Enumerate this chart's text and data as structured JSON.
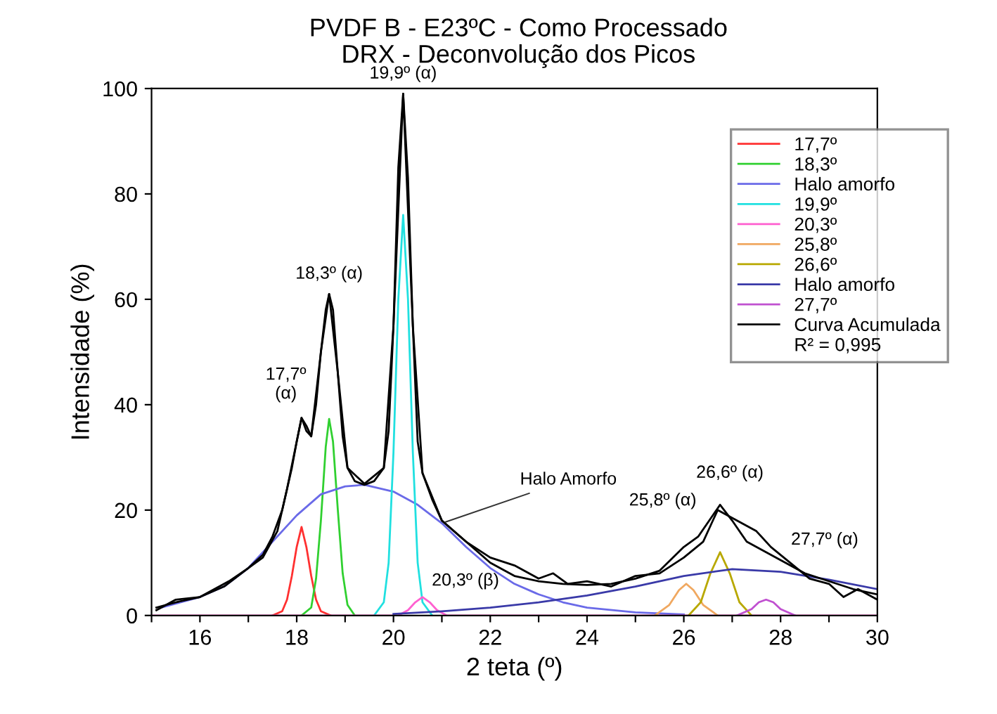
{
  "chart_data": {
    "type": "line",
    "title": "PVDF B - E23ºC - Como Processado",
    "subtitle": "DRX - Deconvolução dos Picos",
    "xlabel": "2 teta (º)",
    "ylabel": "Intensidade (%)",
    "xlim": [
      15,
      30
    ],
    "xticks": [
      {
        "value": 15,
        "label": null
      },
      16,
      {
        "value": 17,
        "label": null
      },
      18,
      {
        "value": 19,
        "label": null
      },
      20,
      {
        "value": 21,
        "label": null
      },
      22,
      {
        "value": 23,
        "label": null
      },
      24,
      {
        "value": 25,
        "label": null
      },
      26,
      {
        "value": 27,
        "label": null
      },
      28,
      {
        "value": 29,
        "label": null
      },
      30
    ],
    "ylim": [
      0,
      100
    ],
    "yticks": [
      0,
      20,
      40,
      60,
      80,
      100
    ],
    "grid": false,
    "legend": "top right",
    "marker": "none",
    "line_style": "solid",
    "series": [
      {
        "name": "17,7º",
        "color": "#ff3030",
        "x": [
          17.5,
          17.7,
          17.8,
          17.9,
          18.0,
          18.1,
          18.2,
          18.3,
          18.4,
          18.5,
          18.7
        ],
        "values": [
          0,
          0.8,
          3,
          7.5,
          13,
          16.8,
          13,
          7.5,
          3,
          0.8,
          0
        ]
      },
      {
        "name": "18,3º",
        "color": "#30d030",
        "x": [
          18.1,
          18.3,
          18.4,
          18.5,
          18.6,
          18.67,
          18.75,
          18.85,
          18.95,
          19.05,
          19.2
        ],
        "values": [
          0,
          1.5,
          7,
          18,
          32,
          37.3,
          33,
          20,
          8,
          2,
          0
        ]
      },
      {
        "name": "Halo amorfo",
        "color": "#6a6ae8",
        "x": [
          15.2,
          16,
          16.5,
          17,
          17.5,
          18,
          18.5,
          19,
          19.4,
          20,
          20.5,
          21,
          21.5,
          22,
          22.5,
          23,
          23.5,
          24,
          25,
          26
        ],
        "values": [
          1.5,
          3.5,
          5.5,
          9,
          14,
          19,
          23,
          24.5,
          24.8,
          23.5,
          21,
          17.5,
          13,
          9,
          6,
          4,
          2.5,
          1.5,
          0.6,
          0.2
        ]
      },
      {
        "name": "19,9º",
        "color": "#20e0e0",
        "x": [
          19.6,
          19.8,
          19.9,
          20.0,
          20.1,
          20.2,
          20.3,
          20.4,
          20.5,
          20.6,
          20.8
        ],
        "values": [
          0,
          2.5,
          10,
          31,
          60,
          76,
          60,
          31,
          10,
          2.5,
          0
        ]
      },
      {
        "name": "20,3º",
        "color": "#ff60d0",
        "x": [
          15,
          20.1,
          20.3,
          20.45,
          20.6,
          20.75,
          20.9,
          21.1,
          30
        ],
        "values": [
          0,
          0,
          1,
          2.5,
          3.5,
          2.5,
          1,
          0,
          0
        ]
      },
      {
        "name": "25,8º",
        "color": "#f0a860",
        "x": [
          25.4,
          25.7,
          25.9,
          26.05,
          26.2,
          26.4,
          26.7
        ],
        "values": [
          0,
          2,
          4.8,
          6,
          4.8,
          2,
          0
        ]
      },
      {
        "name": "26,6º",
        "color": "#b8a800",
        "x": [
          26.1,
          26.35,
          26.55,
          26.75,
          26.95,
          27.15,
          27.4
        ],
        "values": [
          0,
          2.5,
          8,
          12,
          8,
          2.5,
          0
        ]
      },
      {
        "name": "Halo amorfo",
        "color": "#3a3aa8",
        "x": [
          20,
          21,
          22,
          23,
          24,
          25,
          26,
          27,
          28,
          29,
          30
        ],
        "values": [
          0.3,
          0.8,
          1.5,
          2.5,
          3.8,
          5.5,
          7.5,
          8.8,
          8.3,
          6.8,
          5
        ]
      },
      {
        "name": "27,7º",
        "color": "#c050d0",
        "x": [
          27.1,
          27.4,
          27.55,
          27.7,
          27.85,
          28.0,
          28.3
        ],
        "values": [
          0,
          1.2,
          2.5,
          3,
          2.5,
          1.2,
          0
        ]
      },
      {
        "name": "Curva Acumulada",
        "color": "#000000",
        "x": [
          15.1,
          15.5,
          16,
          16.5,
          17,
          17.3,
          17.5,
          17.7,
          17.9,
          18.0,
          18.1,
          18.2,
          18.3,
          18.4,
          18.5,
          18.6,
          18.67,
          18.75,
          18.85,
          18.95,
          19.05,
          19.2,
          19.4,
          19.6,
          19.8,
          19.9,
          20.0,
          20.1,
          20.2,
          20.3,
          20.4,
          20.5,
          20.6,
          20.8,
          21,
          21.5,
          22,
          22.5,
          23,
          23.5,
          24,
          24.5,
          25,
          25.5,
          26,
          26.3,
          26.6,
          26.75,
          27.0,
          27.3,
          27.7,
          28.0,
          28.5,
          29,
          29.5,
          30
        ],
        "values": [
          1.5,
          2.5,
          3.5,
          5.5,
          9,
          11.5,
          15,
          20,
          28,
          33,
          37.5,
          36,
          34,
          40,
          50,
          58,
          61,
          58,
          46,
          34,
          28,
          25.5,
          24.8,
          25.5,
          28,
          35,
          55,
          85,
          99,
          83,
          55,
          33,
          27,
          22,
          18,
          14,
          10,
          7.5,
          6.5,
          6,
          5.8,
          6,
          7,
          8.5,
          13,
          15,
          19,
          21,
          18,
          14,
          12,
          10.5,
          8,
          6.5,
          5,
          4
        ]
      },
      {
        "color": "#000000",
        "x": [
          15.1,
          15.5,
          16,
          16.3,
          16.6,
          17,
          17.3,
          17.6,
          17.8,
          18.0,
          18.1,
          18.2,
          18.3,
          18.5,
          18.67,
          18.85,
          19.05,
          19.4,
          19.8,
          20.0,
          20.2,
          20.4,
          20.6,
          21,
          21.5,
          22,
          22.5,
          23,
          23.3,
          23.6,
          24,
          24.5,
          25,
          25.5,
          26,
          26.4,
          26.7,
          27.1,
          27.5,
          27.8,
          28.2,
          28.6,
          29,
          29.3,
          29.6,
          30
        ],
        "values": [
          1,
          3,
          3.5,
          5,
          6.5,
          9,
          11,
          16,
          24,
          33,
          37.5,
          35,
          34,
          50,
          61,
          46,
          28,
          25,
          28,
          55,
          99,
          55,
          27,
          18,
          14,
          11,
          9.5,
          7,
          8,
          6,
          6.5,
          5.5,
          7.5,
          8,
          11,
          14,
          20,
          18,
          16,
          13,
          10,
          7,
          6,
          3.5,
          5,
          3
        ]
      }
    ],
    "annotations": [
      {
        "text": "17,7º\n(α)",
        "x": 18.1,
        "y": 37.5
      },
      {
        "text": "18,3º (α)",
        "x": 18.67,
        "y": 61
      },
      {
        "text": "19,9º (α)",
        "x": 20.2,
        "y": 99
      },
      {
        "text": "20,3º (β)",
        "x": 20.6,
        "y": 3.5
      },
      {
        "text": "Halo Amorfo",
        "x": 21,
        "y": 17.5
      },
      {
        "text": "25,8º (α)",
        "x": 26.05,
        "y": 15
      },
      {
        "text": "26,6º (α)",
        "x": 26.75,
        "y": 21
      },
      {
        "text": "27,7º (α)",
        "x": 27.7,
        "y": 12
      },
      "R² = 0,995"
    ]
  }
}
